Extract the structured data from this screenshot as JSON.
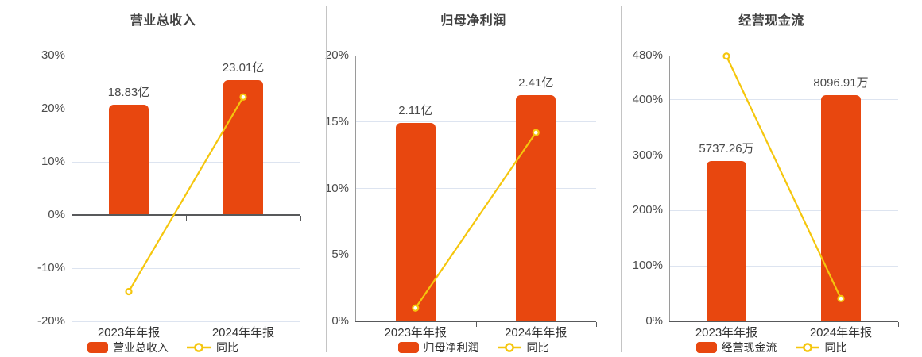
{
  "colors": {
    "bar": "#e8470f",
    "line": "#f5c60d",
    "marker_fill": "#ffffff",
    "grid": "#dde4f0",
    "axis_strong": "#58595b",
    "axis_light": "#9a9a9a",
    "divider": "#c4c4c4"
  },
  "chart_data": [
    {
      "type": "bar+line",
      "title": "营业总收入",
      "categories": [
        "2023年年报",
        "2024年年报"
      ],
      "y_axis": {
        "min": -20,
        "max": 30,
        "baseline": 0,
        "grid": true,
        "ticks": [
          {
            "label": "30%",
            "value": 30
          },
          {
            "label": "20%",
            "value": 20
          },
          {
            "label": "10%",
            "value": 10
          },
          {
            "label": "0%",
            "value": 0
          },
          {
            "label": "-10%",
            "value": -10
          },
          {
            "label": "-20%",
            "value": -20
          }
        ]
      },
      "bar_series": {
        "name": "营业总收入",
        "value_labels": [
          "18.83亿",
          "23.01亿"
        ],
        "values": [
          18.83,
          23.01
        ],
        "unit": "亿",
        "axis_heights_pct": [
          20.7,
          25.3
        ]
      },
      "line_series": {
        "name": "同比",
        "values_pct": [
          -14.4,
          22.2
        ]
      },
      "legend": {
        "bar_label": "营业总收入",
        "line_label": "同比",
        "position": "bottom-center"
      }
    },
    {
      "type": "bar+line",
      "title": "归母净利润",
      "categories": [
        "2023年年报",
        "2024年年报"
      ],
      "y_axis": {
        "min": 0,
        "max": 20,
        "baseline": 0,
        "grid": true,
        "ticks": [
          {
            "label": "20%",
            "value": 20
          },
          {
            "label": "15%",
            "value": 15
          },
          {
            "label": "10%",
            "value": 10
          },
          {
            "label": "5%",
            "value": 5
          },
          {
            "label": "0%",
            "value": 0
          }
        ]
      },
      "bar_series": {
        "name": "归母净利润",
        "value_labels": [
          "2.11亿",
          "2.41亿"
        ],
        "values": [
          2.11,
          2.41
        ],
        "unit": "亿",
        "axis_heights_pct": [
          14.9,
          17.0
        ]
      },
      "line_series": {
        "name": "同比",
        "values_pct": [
          1.0,
          14.2
        ]
      },
      "legend": {
        "bar_label": "归母净利润",
        "line_label": "同比",
        "position": "bottom-center"
      }
    },
    {
      "type": "bar+line",
      "title": "经营现金流",
      "categories": [
        "2023年年报",
        "2024年年报"
      ],
      "y_axis": {
        "min": 0,
        "max": 480,
        "baseline": 0,
        "grid": true,
        "ticks": [
          {
            "label": "480%",
            "value": 480
          },
          {
            "label": "400%",
            "value": 400
          },
          {
            "label": "300%",
            "value": 300
          },
          {
            "label": "200%",
            "value": 200
          },
          {
            "label": "100%",
            "value": 100
          },
          {
            "label": "0%",
            "value": 0
          }
        ]
      },
      "bar_series": {
        "name": "经营现金流",
        "value_labels": [
          "5737.26万",
          "8096.91万"
        ],
        "values": [
          5737.26,
          8096.91
        ],
        "unit": "万",
        "axis_heights_pct": [
          289.4,
          408.4
        ]
      },
      "line_series": {
        "name": "同比",
        "values_pct": [
          478.9,
          41.1
        ]
      },
      "legend": {
        "bar_label": "经营现金流",
        "line_label": "同比",
        "position": "bottom-center"
      }
    }
  ]
}
